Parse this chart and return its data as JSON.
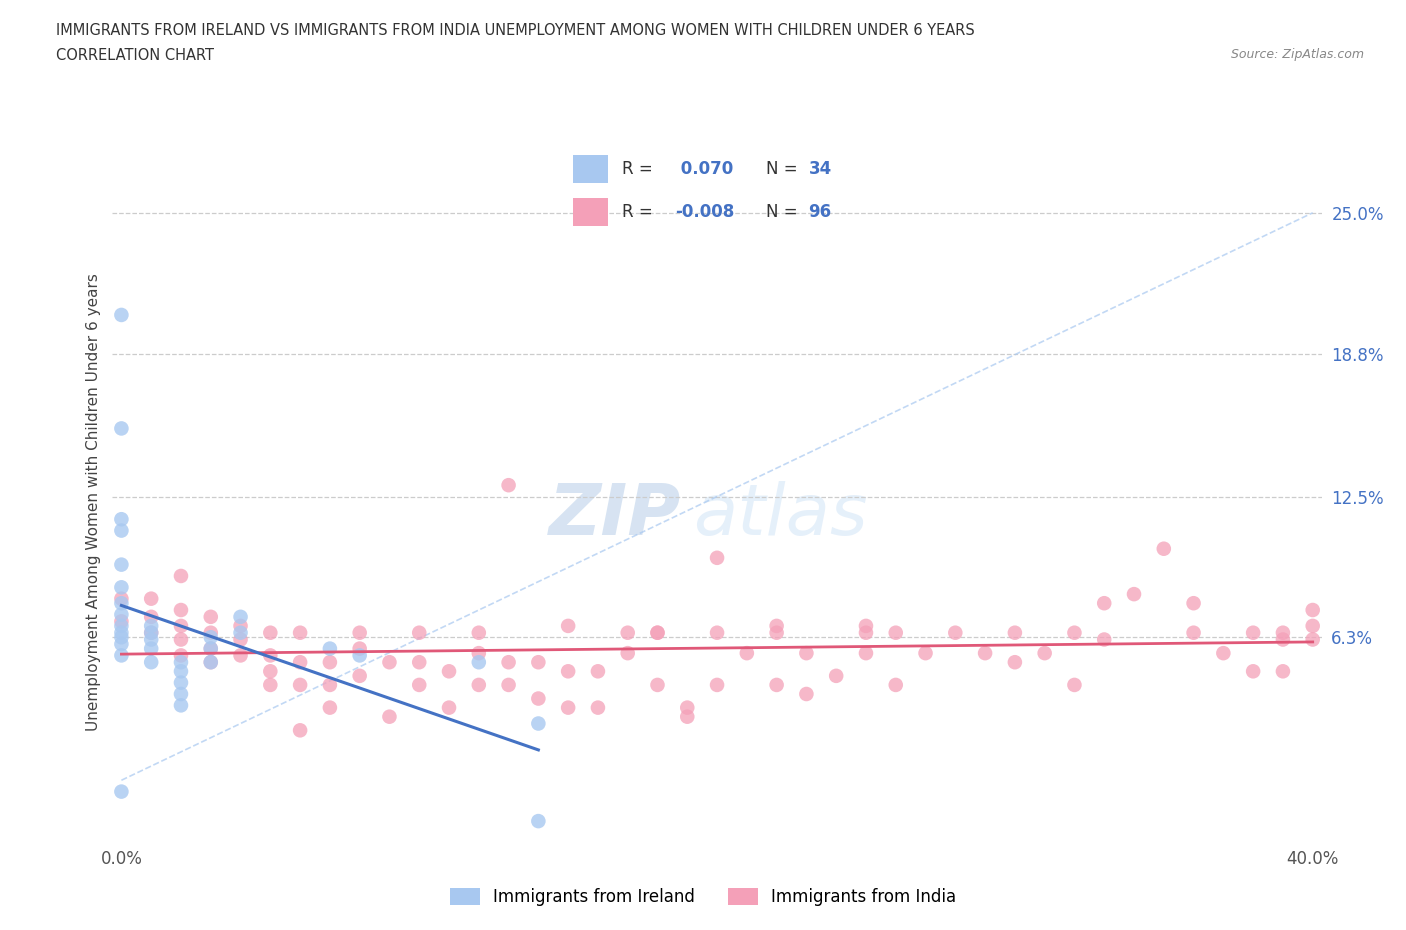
{
  "title_line1": "IMMIGRANTS FROM IRELAND VS IMMIGRANTS FROM INDIA UNEMPLOYMENT AMONG WOMEN WITH CHILDREN UNDER 6 YEARS",
  "title_line2": "CORRELATION CHART",
  "source": "Source: ZipAtlas.com",
  "ylabel": "Unemployment Among Women with Children Under 6 years",
  "xmin": 0.0,
  "xmax": 0.4,
  "ymin": -0.025,
  "ymax": 0.27,
  "legend_ireland": "Immigrants from Ireland",
  "legend_india": "Immigrants from India",
  "R_ireland": 0.07,
  "N_ireland": 34,
  "R_india": -0.008,
  "N_india": 96,
  "color_ireland": "#a8c8f0",
  "color_ireland_line": "#4472c4",
  "color_india": "#f4a0b8",
  "color_india_line": "#e05878",
  "color_diag": "#a8c8f0",
  "watermark_zip": "ZIP",
  "watermark_atlas": "atlas",
  "ireland_x": [
    0.0,
    0.0,
    0.0,
    0.0,
    0.0,
    0.0,
    0.0,
    0.0,
    0.0,
    0.0,
    0.0,
    0.0,
    0.0,
    0.0,
    0.01,
    0.01,
    0.01,
    0.01,
    0.01,
    0.02,
    0.02,
    0.02,
    0.02,
    0.02,
    0.03,
    0.03,
    0.03,
    0.04,
    0.04,
    0.07,
    0.08,
    0.12,
    0.14,
    0.14
  ],
  "ireland_y": [
    0.205,
    0.155,
    0.115,
    0.11,
    0.095,
    0.085,
    0.078,
    0.073,
    0.068,
    0.065,
    0.063,
    0.06,
    0.055,
    -0.005,
    0.068,
    0.065,
    0.062,
    0.058,
    0.052,
    0.052,
    0.048,
    0.043,
    0.038,
    0.033,
    0.063,
    0.058,
    0.052,
    0.072,
    0.065,
    0.058,
    0.055,
    0.052,
    0.025,
    -0.018
  ],
  "india_x": [
    0.0,
    0.0,
    0.01,
    0.01,
    0.01,
    0.02,
    0.02,
    0.02,
    0.02,
    0.02,
    0.03,
    0.03,
    0.03,
    0.03,
    0.04,
    0.04,
    0.04,
    0.05,
    0.05,
    0.05,
    0.05,
    0.06,
    0.06,
    0.06,
    0.07,
    0.07,
    0.07,
    0.08,
    0.08,
    0.09,
    0.1,
    0.1,
    0.1,
    0.11,
    0.12,
    0.12,
    0.13,
    0.13,
    0.14,
    0.14,
    0.15,
    0.15,
    0.16,
    0.17,
    0.17,
    0.18,
    0.18,
    0.19,
    0.2,
    0.2,
    0.21,
    0.22,
    0.22,
    0.23,
    0.24,
    0.25,
    0.25,
    0.26,
    0.27,
    0.28,
    0.29,
    0.3,
    0.31,
    0.32,
    0.32,
    0.33,
    0.34,
    0.35,
    0.36,
    0.37,
    0.38,
    0.38,
    0.39,
    0.39,
    0.4,
    0.4,
    0.4,
    0.13,
    0.2,
    0.25,
    0.08,
    0.12,
    0.15,
    0.18,
    0.22,
    0.26,
    0.3,
    0.33,
    0.36,
    0.39,
    0.06,
    0.09,
    0.11,
    0.16,
    0.19,
    0.23
  ],
  "india_y": [
    0.07,
    0.08,
    0.065,
    0.072,
    0.08,
    0.055,
    0.062,
    0.068,
    0.075,
    0.09,
    0.052,
    0.058,
    0.065,
    0.072,
    0.055,
    0.062,
    0.068,
    0.042,
    0.048,
    0.055,
    0.065,
    0.042,
    0.052,
    0.065,
    0.032,
    0.042,
    0.052,
    0.046,
    0.058,
    0.052,
    0.042,
    0.052,
    0.065,
    0.048,
    0.042,
    0.056,
    0.042,
    0.052,
    0.036,
    0.052,
    0.032,
    0.048,
    0.048,
    0.056,
    0.065,
    0.042,
    0.065,
    0.032,
    0.042,
    0.065,
    0.056,
    0.042,
    0.065,
    0.056,
    0.046,
    0.056,
    0.065,
    0.042,
    0.056,
    0.065,
    0.056,
    0.052,
    0.056,
    0.065,
    0.042,
    0.062,
    0.082,
    0.102,
    0.065,
    0.056,
    0.048,
    0.065,
    0.048,
    0.062,
    0.062,
    0.068,
    0.075,
    0.13,
    0.098,
    0.068,
    0.065,
    0.065,
    0.068,
    0.065,
    0.068,
    0.065,
    0.065,
    0.078,
    0.078,
    0.065,
    0.022,
    0.028,
    0.032,
    0.032,
    0.028,
    0.038
  ]
}
